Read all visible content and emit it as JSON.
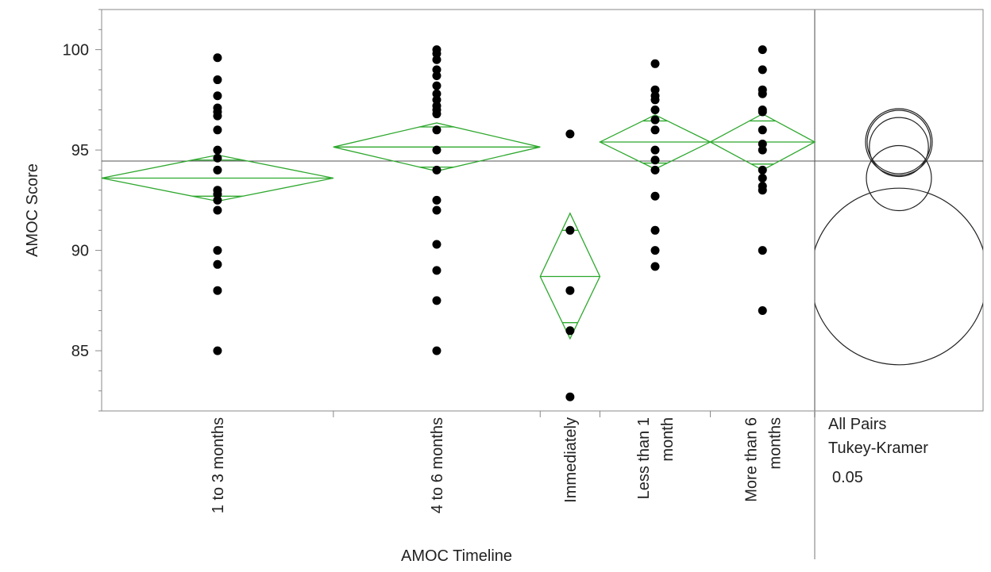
{
  "chart_data": {
    "type": "scatter",
    "xlabel": "AMOC Timeline",
    "ylabel": "AMOC Score",
    "ylim": [
      82,
      102
    ],
    "yticks": [
      85,
      90,
      95,
      100
    ],
    "grand_mean": 94.45,
    "categories": [
      {
        "name": "1 to 3 months",
        "lines": [
          "1 to 3 months"
        ],
        "from": 0.0,
        "to": 0.325,
        "center": 0.1625,
        "mean": 93.6,
        "ci": [
          92.45,
          94.75
        ],
        "overlap": [
          92.7,
          94.5
        ],
        "points": [
          99.6,
          98.5,
          97.7,
          97.1,
          96.9,
          96.7,
          96.0,
          95.0,
          94.6,
          94.0,
          93.0,
          92.8,
          92.5,
          92.0,
          90.0,
          89.3,
          88.0,
          85.0
        ]
      },
      {
        "name": "4 to 6 months",
        "lines": [
          "4 to 6 months"
        ],
        "from": 0.325,
        "to": 0.615,
        "center": 0.4699,
        "mean": 95.15,
        "ci": [
          93.95,
          96.35
        ],
        "overlap": [
          94.15,
          96.15
        ],
        "points": [
          100.0,
          99.8,
          99.5,
          99.0,
          98.7,
          98.2,
          97.8,
          97.5,
          97.2,
          97.0,
          96.8,
          96.0,
          95.0,
          94.0,
          92.5,
          92.0,
          90.3,
          89.0,
          87.5,
          85.0
        ]
      },
      {
        "name": "Immediately",
        "lines": [
          "Immediately"
        ],
        "from": 0.615,
        "to": 0.6988,
        "center": 0.6569,
        "mean": 88.7,
        "ci": [
          85.6,
          91.85
        ],
        "overlap": [
          86.4,
          91.0
        ],
        "points": [
          95.8,
          91.0,
          88.0,
          86.0,
          82.7
        ]
      },
      {
        "name": "Less than 1 month",
        "lines": [
          "Less than 1",
          "month"
        ],
        "from": 0.6988,
        "to": 0.8536,
        "center": 0.7762,
        "mean": 95.4,
        "ci": [
          94.05,
          96.75
        ],
        "overlap": [
          94.35,
          96.45
        ],
        "points": [
          99.3,
          98.0,
          97.7,
          97.5,
          97.0,
          96.5,
          96.0,
          95.0,
          94.5,
          94.0,
          92.7,
          91.0,
          90.0,
          89.2
        ]
      },
      {
        "name": "More than 6 months",
        "lines": [
          "More than 6",
          "months"
        ],
        "from": 0.8536,
        "to": 1.0,
        "center": 0.9268,
        "mean": 95.4,
        "ci": [
          94.0,
          96.8
        ],
        "overlap": [
          94.3,
          96.45
        ],
        "points": [
          100.0,
          99.0,
          98.0,
          97.8,
          97.0,
          96.9,
          96.0,
          95.3,
          95.0,
          94.0,
          93.6,
          93.2,
          93.0,
          90.0,
          87.0
        ]
      }
    ],
    "comparison_circles": [
      {
        "group": "1 to 3 months",
        "center": 93.6,
        "radius": 1.62
      },
      {
        "group": "4 to 6 months",
        "center": 95.15,
        "radius": 1.47
      },
      {
        "group": "Immediately",
        "center": 88.7,
        "radius": 4.4
      },
      {
        "group": "Less than 1 month",
        "center": 95.4,
        "radius": 1.58
      },
      {
        "group": "More than 6 months",
        "center": 95.4,
        "radius": 1.66
      }
    ],
    "side_label": [
      "All Pairs",
      "Tukey-Kramer",
      "0.05"
    ],
    "colors": {
      "diamond": "#2ea82e",
      "points": "#000000",
      "axis": "#888888",
      "mean_line": "#555555",
      "circle": "#222222"
    }
  }
}
